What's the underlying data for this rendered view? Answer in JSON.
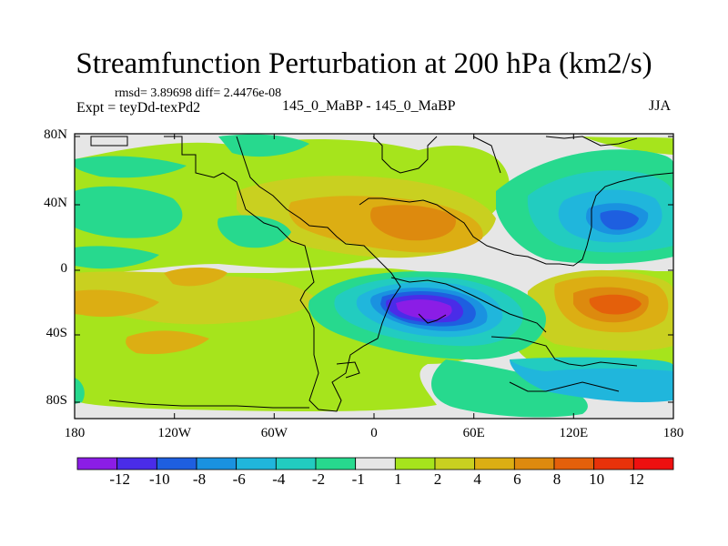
{
  "figure": {
    "title": "Streamfunction Perturbation at 200 hPa (km2/s)",
    "stats": "rmsd= 3.89698  diff= 2.4476e-08",
    "expt_label": "Expt = teyDd-texPd2",
    "comparison_label": "145_0_MaBP - 145_0_MaBP",
    "season": "JJA"
  },
  "axes": {
    "lon_ticks": [
      "180",
      "120W",
      "60W",
      "0",
      "60E",
      "120E",
      "180"
    ],
    "lat_ticks": [
      "80N",
      "40N",
      "0",
      "40S",
      "80S"
    ]
  },
  "colorbar": {
    "labels": [
      "-12",
      "-10",
      "-8",
      "-6",
      "-4",
      "-2",
      "-1",
      "1",
      "2",
      "4",
      "6",
      "8",
      "10",
      "12"
    ],
    "colors": [
      "#8b1de6",
      "#4a2ce8",
      "#1e5fe0",
      "#1a92e0",
      "#20b6dc",
      "#22ccc0",
      "#27d98e",
      "#e6e6e6",
      "#a6e41c",
      "#c9d020",
      "#dcae13",
      "#dd8a0e",
      "#e4600b",
      "#e8320a",
      "#ee1010"
    ]
  }
}
